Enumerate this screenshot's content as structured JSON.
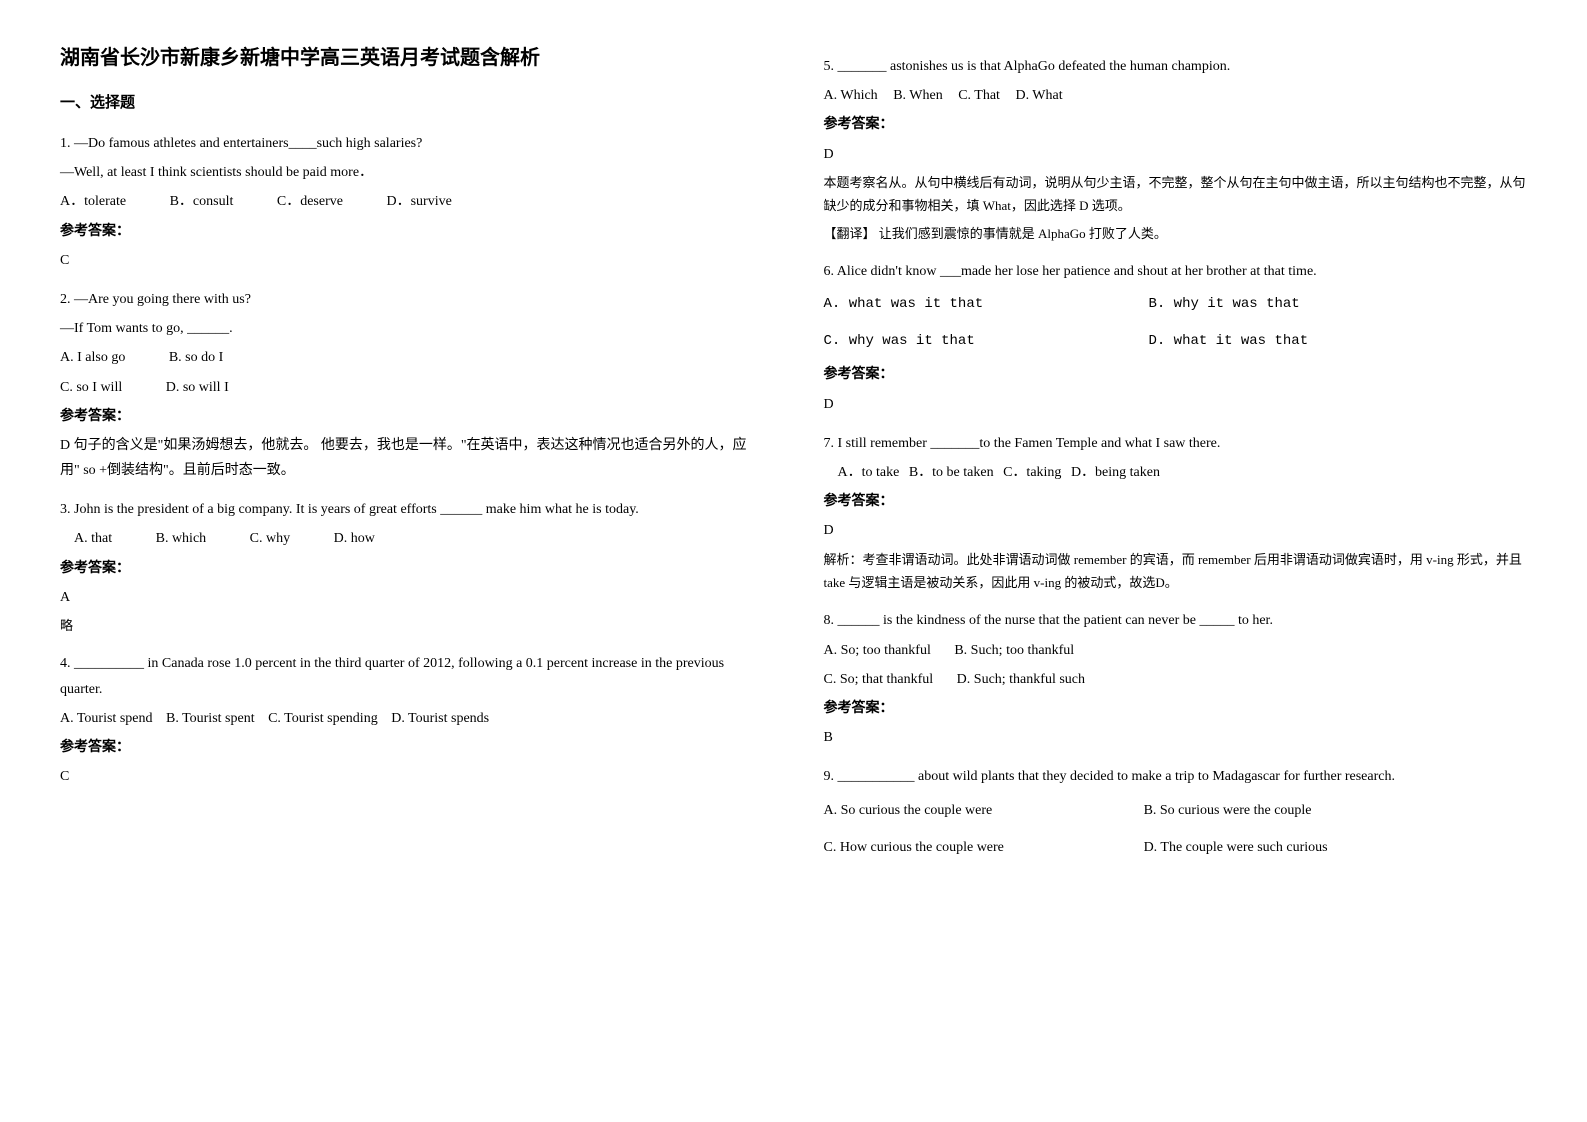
{
  "title": "湖南省长沙市新康乡新塘中学高三英语月考试题含解析",
  "section1": "一、选择题",
  "ans_label": "参考答案：",
  "q1": {
    "line1": "1. —Do famous athletes and entertainers____such high salaries?",
    "line2": "—Well, at least I think scientists should be paid more．",
    "optA": "A．tolerate",
    "optB": "B．consult",
    "optC": "C．deserve",
    "optD": "D．survive",
    "ans": "C"
  },
  "q2": {
    "line1": "2. —Are you going there with us?",
    "line2": "—If Tom wants to go, ______.",
    "optA": "A. I also go",
    "optB": "B. so do I",
    "optC": "C. so I will",
    "optD": "D. so will I",
    "ans": "D 句子的含义是\"如果汤姆想去，他就去。 他要去，我也是一样。\"在英语中，表达这种情况也适合另外的人，应用\" so +倒装结构\"。且前后时态一致。"
  },
  "q3": {
    "line1": "3. John is the president of a big company. It is years of great efforts ______ make him what he is today.",
    "optA": "A. that",
    "optB": "B. which",
    "optC": "C. why",
    "optD": "D. how",
    "ans": "A",
    "note": "略"
  },
  "q4": {
    "line1": "4. __________ in Canada rose 1.0 percent in the third quarter of 2012, following a 0.1 percent increase in the previous quarter.",
    "optA": "A. Tourist spend",
    "optB": "B. Tourist spent",
    "optC": "C. Tourist spending",
    "optD": "D. Tourist spends",
    "ans": "C"
  },
  "q5": {
    "line1": "5. _______ astonishes us is that AlphaGo defeated the human champion.",
    "optA": "A. Which",
    "optB": "B. When",
    "optC": "C. That",
    "optD": "D. What",
    "ans": "D",
    "explain": "本题考察名从。从句中横线后有动词，说明从句少主语，不完整，整个从句在主句中做主语，所以主句结构也不完整，从句缺少的成分和事物相关，填 What，因此选择 D 选项。",
    "trans": "【翻译】 让我们感到震惊的事情就是 AlphaGo 打败了人类。"
  },
  "q6": {
    "line1": "6. Alice didn't know ___made her lose her patience and shout at her brother at that time.",
    "optA": "A. what was it that",
    "optB": "B. why it was that",
    "optC": "C. why was it that",
    "optD": "D. what it was that",
    "ans": "D"
  },
  "q7": {
    "line1": "7. I still remember _______to the Famen Temple and what I saw there.",
    "optA": "A．to take",
    "optB": "B．to be taken",
    "optC": "C．taking",
    "optD": "D．being taken",
    "ans": "D",
    "explain": "解析：考查非谓语动词。此处非谓语动词做 remember 的宾语，而 remember 后用非谓语动词做宾语时，用 v-ing 形式，并且 take 与逻辑主语是被动关系，因此用 v-ing 的被动式，故选D。"
  },
  "q8": {
    "line1": "8. ______ is the kindness of the nurse that the patient can never be _____ to her.",
    "optA": "A. So; too thankful",
    "optB": "B. Such; too thankful",
    "optC": "C. So; that thankful",
    "optD": "D. Such; thankful such",
    "ans": "B"
  },
  "q9": {
    "line1": "9. ___________ about wild plants that they decided to make a trip to Madagascar for further research.",
    "optA": "A. So curious the couple were",
    "optB": "B. So curious were the couple",
    "optC": "C. How curious the couple were",
    "optD": "D. The couple were such curious"
  }
}
